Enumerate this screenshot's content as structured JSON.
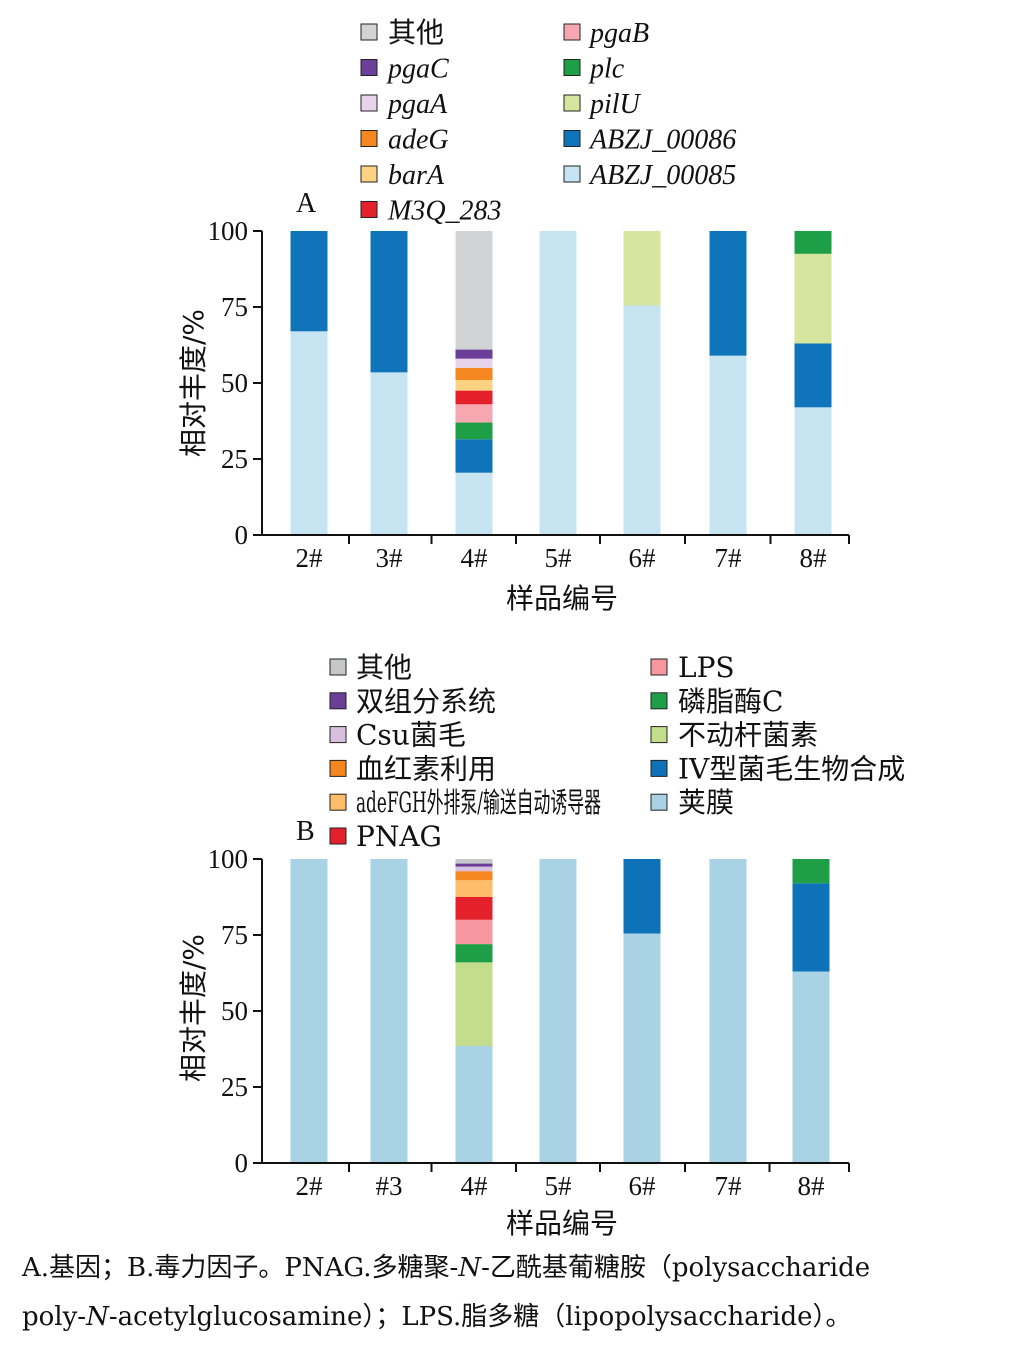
{
  "chart_data": [
    {
      "panel": "A",
      "type": "bar",
      "stacked": true,
      "categories": [
        "2#",
        "3#",
        "4#",
        "5#",
        "6#",
        "7#",
        "8#"
      ],
      "xlabel": "样品编号",
      "ylabel": "相对丰度/%",
      "ylim": [
        0,
        100
      ],
      "yticks": [
        0,
        25,
        50,
        75,
        100
      ],
      "grid": false,
      "legend_position": "top",
      "legend_italic": true,
      "series": [
        {
          "name": "ABZJ_00085",
          "color": "#c7e4f3",
          "values": [
            67,
            53.5,
            20.5,
            100,
            75.5,
            59,
            42
          ]
        },
        {
          "name": "ABZJ_00086",
          "color": "#1074ba",
          "values": [
            33,
            46.5,
            11,
            0,
            0,
            41,
            21
          ]
        },
        {
          "name": "pilU",
          "color": "#d5e59e",
          "values": [
            0,
            0,
            0,
            0,
            24.5,
            0,
            29.5
          ]
        },
        {
          "name": "plc",
          "color": "#1f9e48",
          "values": [
            0,
            0,
            5.5,
            0,
            0,
            0,
            7.5
          ]
        },
        {
          "name": "pgaB",
          "color": "#f6a7b0",
          "values": [
            0,
            0,
            6,
            0,
            0,
            0,
            0
          ]
        },
        {
          "name": "M3Q_283",
          "color": "#e4202b",
          "values": [
            0,
            0,
            4.5,
            0,
            0,
            0,
            0
          ]
        },
        {
          "name": "barA",
          "color": "#fdd383",
          "values": [
            0,
            0,
            3.5,
            0,
            0,
            0,
            0
          ]
        },
        {
          "name": "adeG",
          "color": "#f6861f",
          "values": [
            0,
            0,
            4,
            0,
            0,
            0,
            0
          ]
        },
        {
          "name": "pgaA",
          "color": "#e7d4ea",
          "values": [
            0,
            0,
            3,
            0,
            0,
            0,
            0
          ]
        },
        {
          "name": "pgaC",
          "color": "#6b3e98",
          "values": [
            0,
            0,
            3,
            0,
            0,
            0,
            0
          ]
        },
        {
          "name": "其他",
          "color": "#d1d3d4",
          "values": [
            0,
            0,
            39,
            0,
            0,
            0,
            0
          ]
        }
      ],
      "legend_order": [
        "其他",
        "pgaC",
        "pgaA",
        "adeG",
        "barA",
        "M3Q_283",
        "pgaB",
        "plc",
        "pilU",
        "ABZJ_00086",
        "ABZJ_00085"
      ]
    },
    {
      "panel": "B",
      "type": "bar",
      "stacked": true,
      "categories": [
        "2#",
        "#3",
        "4#",
        "5#",
        "6#",
        "7#",
        "8#"
      ],
      "xlabel": "样品编号",
      "ylabel": "相对丰度/%",
      "ylim": [
        0,
        100
      ],
      "yticks": [
        0,
        25,
        50,
        75,
        100
      ],
      "grid": false,
      "legend_position": "top",
      "legend_italic": false,
      "series": [
        {
          "name": "荚膜",
          "color": "#a9d2e4",
          "values": [
            100,
            100,
            38.5,
            100,
            75.5,
            100,
            63
          ]
        },
        {
          "name": "IV型菌毛生物合成",
          "color": "#0d72b8",
          "values": [
            0,
            0,
            0,
            0,
            24.5,
            0,
            29
          ]
        },
        {
          "name": "不动杆菌素",
          "color": "#c2dd8c",
          "values": [
            0,
            0,
            27.5,
            0,
            0,
            0,
            0
          ]
        },
        {
          "name": "磷脂酶C",
          "color": "#1f9e48",
          "values": [
            0,
            0,
            6,
            0,
            0,
            0,
            8
          ]
        },
        {
          "name": "LPS",
          "color": "#f6979f",
          "values": [
            0,
            0,
            8,
            0,
            0,
            0,
            0
          ]
        },
        {
          "name": "PNAG",
          "color": "#e4202b",
          "values": [
            0,
            0,
            7.5,
            0,
            0,
            0,
            0
          ]
        },
        {
          "name": "adeFGH外排泵/输送自动诱导器",
          "color": "#fdbd6a",
          "values": [
            0,
            0,
            5.5,
            0,
            0,
            0,
            0
          ]
        },
        {
          "name": "血红素利用",
          "color": "#f6861f",
          "values": [
            0,
            0,
            3,
            0,
            0,
            0,
            0
          ]
        },
        {
          "name": "Csu菌毛",
          "color": "#d7bfe0",
          "values": [
            0,
            0,
            1.5,
            0,
            0,
            0,
            0
          ]
        },
        {
          "name": "双组分系统",
          "color": "#6b3e98",
          "values": [
            0,
            0,
            1,
            0,
            0,
            0,
            0
          ]
        },
        {
          "name": "其他",
          "color": "#c5c7c9",
          "values": [
            0,
            0,
            1.5,
            0,
            0,
            0,
            0
          ]
        }
      ],
      "legend_order": [
        "其他",
        "双组分系统",
        "Csu菌毛",
        "血红素利用",
        "adeFGH外排泵/输送自动诱导器",
        "PNAG",
        "LPS",
        "磷脂酶C",
        "不动杆菌素",
        "IV型菌毛生物合成",
        "荚膜"
      ]
    }
  ],
  "caption": {
    "line1_a": "A.基因；B.毒力因子。PNAG.多糖聚-",
    "line1_b": "N",
    "line1_c": "-乙酰基葡糖胺（polysaccharide",
    "line2_a": "poly-",
    "line2_b": "N",
    "line2_c": "-acetylglucosamine）；LPS.脂多糖（lipopolysaccharide）。"
  }
}
